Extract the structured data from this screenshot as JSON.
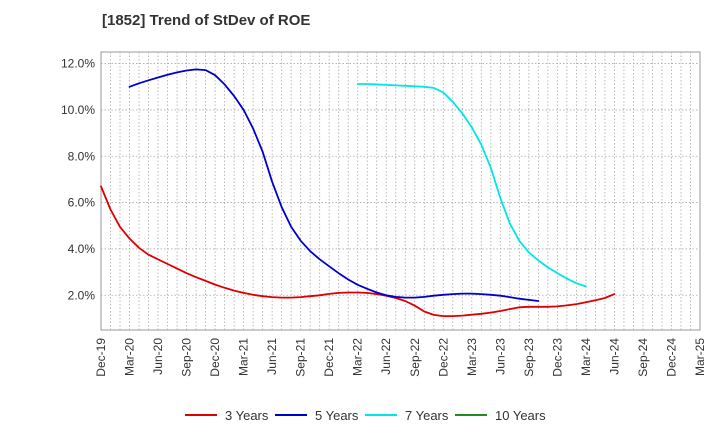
{
  "chart_data": {
    "type": "line",
    "title": "[1852]  Trend of StDev of ROE",
    "xlabel": "",
    "ylabel": "",
    "ylim": [
      0.5,
      12.5
    ],
    "y_ticks": [
      2.0,
      4.0,
      6.0,
      8.0,
      10.0,
      12.0
    ],
    "y_tick_labels": [
      "2.0%",
      "4.0%",
      "6.0%",
      "8.0%",
      "10.0%",
      "12.0%"
    ],
    "x_tick_labels": [
      "Dec-19",
      "Mar-20",
      "Jun-20",
      "Sep-20",
      "Dec-20",
      "Mar-21",
      "Jun-21",
      "Sep-21",
      "Dec-21",
      "Mar-22",
      "Jun-22",
      "Sep-22",
      "Dec-22",
      "Mar-23",
      "Jun-23",
      "Sep-23",
      "Dec-23",
      "Mar-24",
      "Jun-24",
      "Sep-24",
      "Dec-24",
      "Mar-25"
    ],
    "grid": true,
    "legend_position": "bottom",
    "series": [
      {
        "name": "3 Years",
        "color": "#dd0000",
        "x": [
          0,
          1,
          2,
          3,
          4,
          5,
          6,
          7,
          8,
          9,
          10,
          11,
          12,
          13,
          14,
          15,
          16,
          17,
          18,
          19,
          20,
          21,
          22,
          23,
          24,
          25,
          26,
          27,
          28,
          29,
          30,
          31,
          32,
          33,
          34,
          35,
          36,
          37,
          38,
          39,
          40,
          41,
          42,
          43,
          44,
          45,
          46,
          47,
          48,
          49,
          50,
          51,
          52,
          53,
          54,
          55,
          56,
          57,
          58,
          59,
          60
        ],
        "y": [
          6.7,
          5.7,
          4.95,
          4.45,
          4.05,
          3.75,
          3.55,
          3.35,
          3.15,
          2.95,
          2.78,
          2.62,
          2.46,
          2.32,
          2.2,
          2.1,
          2.02,
          1.96,
          1.92,
          1.9,
          1.9,
          1.92,
          1.96,
          2.0,
          2.06,
          2.1,
          2.12,
          2.12,
          2.1,
          2.05,
          1.98,
          1.88,
          1.75,
          1.55,
          1.3,
          1.15,
          1.1,
          1.1,
          1.12,
          1.16,
          1.2,
          1.25,
          1.32,
          1.4,
          1.48,
          1.5,
          1.5,
          1.5,
          1.52,
          1.56,
          1.62,
          1.7,
          1.78,
          1.88,
          2.05,
          null,
          null,
          null,
          null,
          null,
          null
        ]
      },
      {
        "name": "5 Years",
        "color": "#0000cc",
        "x": [
          3,
          4,
          5,
          6,
          7,
          8,
          9,
          10,
          11,
          12,
          13,
          14,
          15,
          16,
          17,
          18,
          19,
          20,
          21,
          22,
          23,
          24,
          25,
          26,
          27,
          28,
          29,
          30,
          31,
          32,
          33,
          34,
          35,
          36,
          37,
          38,
          39,
          40,
          41,
          42,
          43,
          44,
          45,
          46,
          47,
          48,
          49,
          50,
          51,
          52,
          53,
          54,
          55,
          56,
          57,
          58,
          59,
          60
        ],
        "y": [
          11.0,
          11.15,
          11.28,
          11.4,
          11.52,
          11.62,
          11.7,
          11.75,
          11.72,
          11.5,
          11.1,
          10.6,
          10.0,
          9.2,
          8.2,
          6.9,
          5.8,
          4.95,
          4.35,
          3.9,
          3.55,
          3.25,
          2.95,
          2.68,
          2.45,
          2.28,
          2.12,
          2.0,
          1.93,
          1.9,
          1.9,
          1.93,
          1.98,
          2.02,
          2.05,
          2.07,
          2.07,
          2.05,
          2.02,
          1.98,
          1.92,
          1.85,
          1.8,
          1.75,
          null,
          null,
          null,
          null,
          null,
          null,
          null,
          null,
          null,
          null,
          null,
          null,
          null,
          null
        ]
      },
      {
        "name": "7 Years",
        "color": "#00e5e5",
        "x": [
          27,
          28,
          29,
          30,
          31,
          32,
          33,
          34,
          35,
          36,
          37,
          38,
          39,
          40,
          41,
          42,
          43,
          44,
          45,
          46,
          47,
          48,
          49,
          50,
          51,
          52,
          53,
          54,
          55,
          56,
          57,
          58,
          59,
          60
        ],
        "y": [
          11.12,
          11.12,
          11.1,
          11.08,
          11.06,
          11.04,
          11.02,
          11.0,
          10.95,
          10.75,
          10.35,
          9.85,
          9.25,
          8.5,
          7.5,
          6.2,
          5.1,
          4.35,
          3.85,
          3.5,
          3.2,
          2.95,
          2.72,
          2.52,
          2.38,
          null,
          null,
          null,
          null,
          null,
          null,
          null,
          null,
          null
        ]
      },
      {
        "name": "10 Years",
        "color": "#228b22",
        "x": [],
        "y": []
      }
    ]
  },
  "legend": {
    "items": [
      {
        "label": "3 Years",
        "color": "#dd0000"
      },
      {
        "label": "5 Years",
        "color": "#0000cc"
      },
      {
        "label": "7 Years",
        "color": "#00e5e5"
      },
      {
        "label": "10 Years",
        "color": "#228b22"
      }
    ]
  }
}
